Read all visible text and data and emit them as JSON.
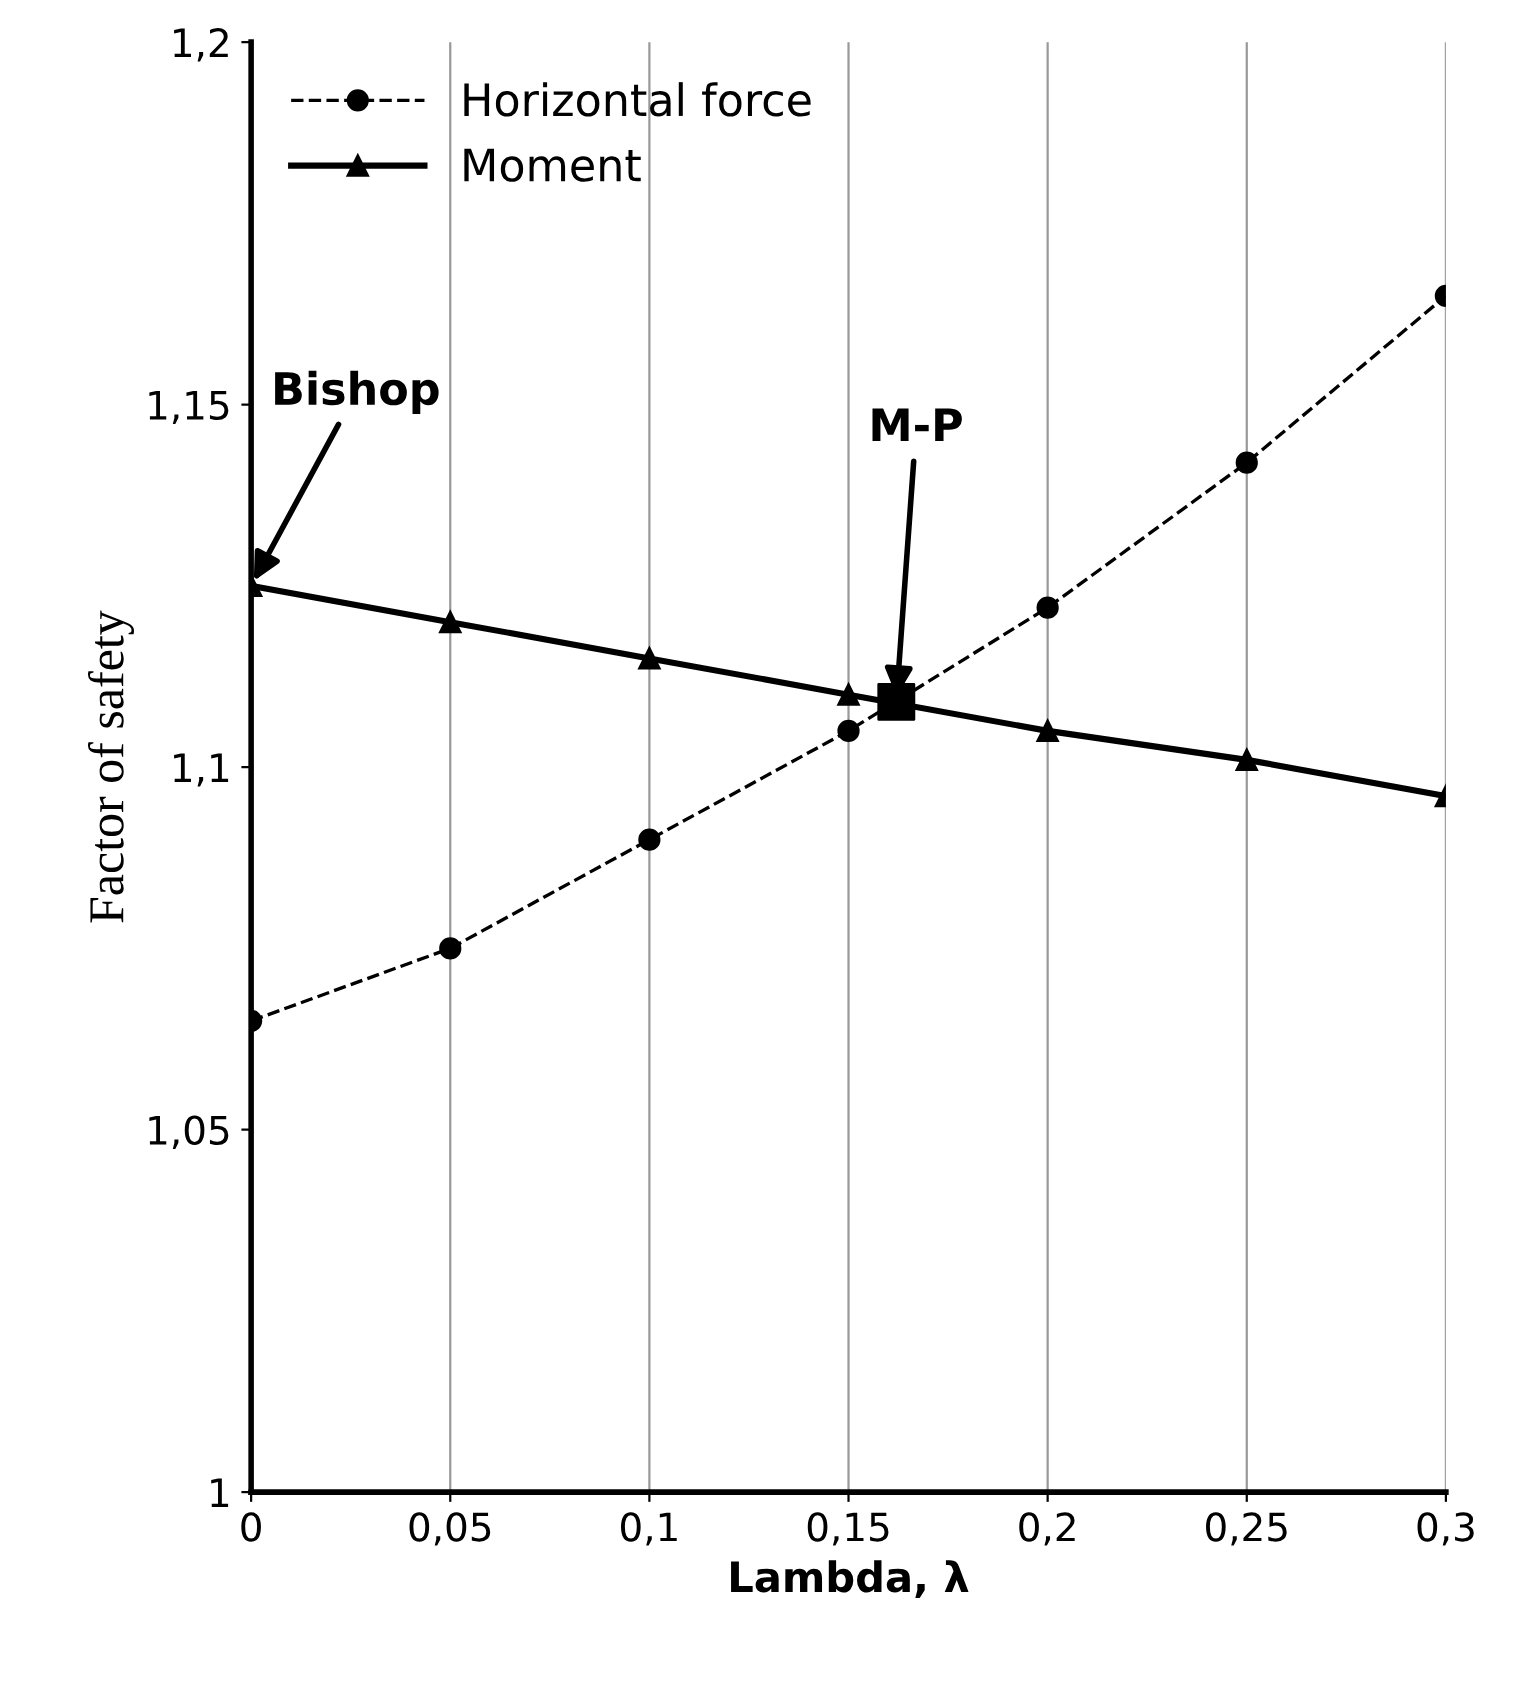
{
  "chart_data": {
    "type": "line",
    "xlabel": "Lambda, λ",
    "ylabel": "Factor of safety",
    "x": [
      0,
      0.05,
      0.1,
      0.15,
      0.2,
      0.25,
      0.3
    ],
    "series": [
      {
        "name": "Horizontal force",
        "color": "#000000",
        "values": [
          1.065,
          1.075,
          1.09,
          1.105,
          1.122,
          1.142,
          1.165
        ],
        "marker": "circle",
        "line_style": "dashed"
      },
      {
        "name": "Moment",
        "color": "#000000",
        "values": [
          1.125,
          1.12,
          1.115,
          1.11,
          1.105,
          1.101,
          1.096
        ],
        "marker": "triangle",
        "line_style": "solid"
      },
      {
        "type": "scatter",
        "color": "#000000",
        "x": [
          0.162
        ],
        "values": [
          1.109
        ],
        "marker": "square"
      }
    ],
    "annotations": [
      {
        "text": "Bishop",
        "x": 0,
        "y": 1.125
      },
      {
        "text": "M-P",
        "x": 0.162,
        "y": 1.109
      }
    ],
    "xlim": [
      0,
      0.3
    ],
    "ylim": [
      1,
      1.2
    ],
    "xticks": [
      0,
      {
        "value": 0.05,
        "label": "0,05"
      },
      {
        "value": 0.1,
        "label": "0,1"
      },
      {
        "value": 0.15,
        "label": "0,15"
      },
      {
        "value": 0.2,
        "label": "0,2"
      },
      {
        "value": 0.25,
        "label": "0,25"
      },
      {
        "value": 0.3,
        "label": "0,3"
      }
    ],
    "yticks": [
      1,
      {
        "value": 1.05,
        "label": "1,05"
      },
      {
        "value": 1.1,
        "label": "1,1"
      },
      {
        "value": 1.15,
        "label": "1,15"
      },
      {
        "value": 1.2,
        "label": "1,2"
      }
    ],
    "grid": "x",
    "legend": "top left"
  }
}
